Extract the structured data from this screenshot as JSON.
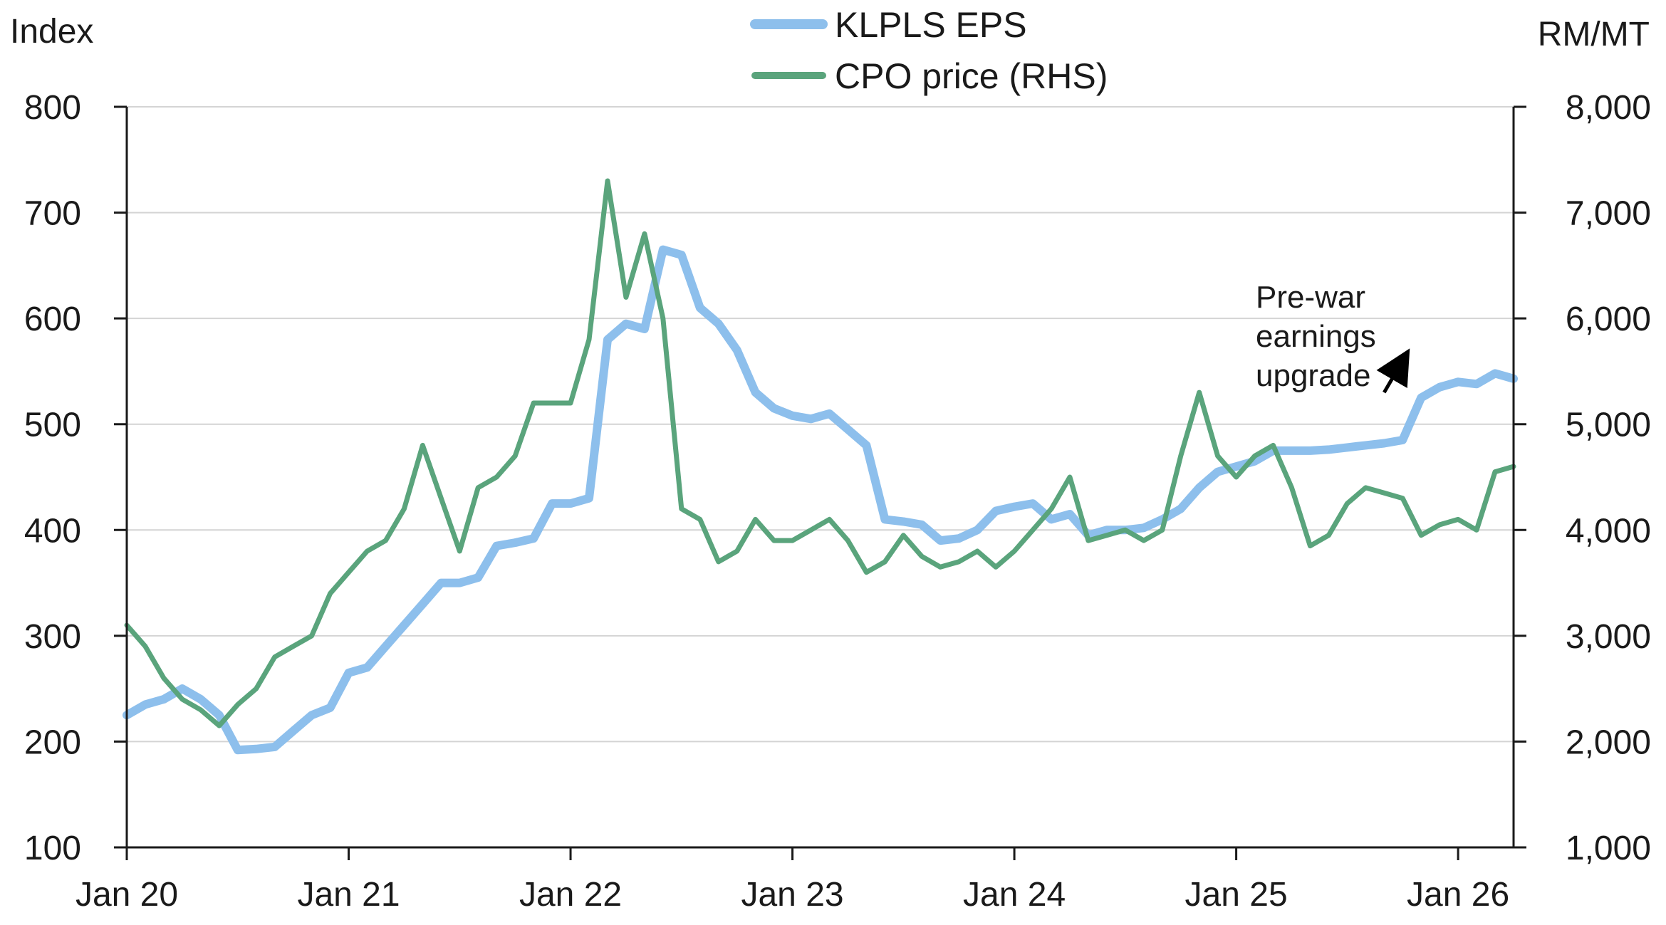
{
  "chart_data": {
    "type": "line",
    "legend": {
      "position": "top-center"
    },
    "grid": true,
    "left_axis": {
      "unit_label": "Index",
      "range": [
        100,
        800
      ],
      "ticks": [
        100,
        200,
        300,
        400,
        500,
        600,
        700,
        800
      ],
      "tick_labels": [
        "100",
        "200",
        "300",
        "400",
        "500",
        "600",
        "700",
        "800"
      ]
    },
    "right_axis": {
      "unit_label": "RM/MT",
      "range": [
        1000,
        8000
      ],
      "ticks": [
        1000,
        2000,
        3000,
        4000,
        5000,
        6000,
        7000,
        8000
      ],
      "tick_labels": [
        "1,000",
        "2,000",
        "3,000",
        "4,000",
        "5,000",
        "6,000",
        "7,000",
        "8,000"
      ]
    },
    "x_axis": {
      "range": [
        "2020-01",
        "2026-04"
      ],
      "ticks": [
        "2020-01",
        "2021-01",
        "2022-01",
        "2023-01",
        "2024-01",
        "2025-01",
        "2026-01"
      ],
      "tick_labels": [
        "Jan 20",
        "Jan 21",
        "Jan 22",
        "Jan 23",
        "Jan 24",
        "Jan 25",
        "Jan 26"
      ]
    },
    "series": [
      {
        "name": "KLPLS EPS",
        "axis": "left",
        "color": "#8dbfec",
        "points": [
          [
            "2020-01",
            225
          ],
          [
            "2020-02",
            235
          ],
          [
            "2020-03",
            240
          ],
          [
            "2020-04",
            250
          ],
          [
            "2020-05",
            240
          ],
          [
            "2020-06",
            225
          ],
          [
            "2020-07",
            192
          ],
          [
            "2020-08",
            193
          ],
          [
            "2020-09",
            195
          ],
          [
            "2020-10",
            210
          ],
          [
            "2020-11",
            225
          ],
          [
            "2020-12",
            232
          ],
          [
            "2021-01",
            265
          ],
          [
            "2021-02",
            270
          ],
          [
            "2021-03",
            290
          ],
          [
            "2021-04",
            310
          ],
          [
            "2021-05",
            330
          ],
          [
            "2021-06",
            350
          ],
          [
            "2021-07",
            350
          ],
          [
            "2021-08",
            355
          ],
          [
            "2021-09",
            385
          ],
          [
            "2021-10",
            388
          ],
          [
            "2021-11",
            392
          ],
          [
            "2021-12",
            425
          ],
          [
            "2022-01",
            425
          ],
          [
            "2022-02",
            430
          ],
          [
            "2022-03",
            580
          ],
          [
            "2022-04",
            595
          ],
          [
            "2022-05",
            590
          ],
          [
            "2022-06",
            665
          ],
          [
            "2022-07",
            660
          ],
          [
            "2022-08",
            610
          ],
          [
            "2022-09",
            595
          ],
          [
            "2022-10",
            570
          ],
          [
            "2022-11",
            530
          ],
          [
            "2022-12",
            515
          ],
          [
            "2023-01",
            508
          ],
          [
            "2023-02",
            505
          ],
          [
            "2023-03",
            510
          ],
          [
            "2023-04",
            495
          ],
          [
            "2023-05",
            480
          ],
          [
            "2023-06",
            410
          ],
          [
            "2023-07",
            408
          ],
          [
            "2023-08",
            405
          ],
          [
            "2023-09",
            390
          ],
          [
            "2023-10",
            392
          ],
          [
            "2023-11",
            400
          ],
          [
            "2023-12",
            418
          ],
          [
            "2024-01",
            422
          ],
          [
            "2024-02",
            425
          ],
          [
            "2024-03",
            410
          ],
          [
            "2024-04",
            415
          ],
          [
            "2024-05",
            395
          ],
          [
            "2024-06",
            400
          ],
          [
            "2024-07",
            400
          ],
          [
            "2024-08",
            402
          ],
          [
            "2024-09",
            410
          ],
          [
            "2024-10",
            420
          ],
          [
            "2024-11",
            440
          ],
          [
            "2024-12",
            455
          ],
          [
            "2025-01",
            460
          ],
          [
            "2025-02",
            465
          ],
          [
            "2025-03",
            475
          ],
          [
            "2025-04",
            475
          ],
          [
            "2025-05",
            475
          ],
          [
            "2025-06",
            476
          ],
          [
            "2025-07",
            478
          ],
          [
            "2025-08",
            480
          ],
          [
            "2025-09",
            482
          ],
          [
            "2025-10",
            485
          ],
          [
            "2025-11",
            525
          ],
          [
            "2025-12",
            535
          ],
          [
            "2026-01",
            540
          ],
          [
            "2026-02",
            538
          ],
          [
            "2026-03",
            548
          ],
          [
            "2026-04",
            543
          ]
        ]
      },
      {
        "name": "CPO price (RHS)",
        "axis": "right",
        "color": "#5aa47c",
        "points": [
          [
            "2020-01",
            3100
          ],
          [
            "2020-02",
            2900
          ],
          [
            "2020-03",
            2600
          ],
          [
            "2020-04",
            2400
          ],
          [
            "2020-05",
            2300
          ],
          [
            "2020-06",
            2150
          ],
          [
            "2020-07",
            2350
          ],
          [
            "2020-08",
            2500
          ],
          [
            "2020-09",
            2800
          ],
          [
            "2020-10",
            2900
          ],
          [
            "2020-11",
            3000
          ],
          [
            "2020-12",
            3400
          ],
          [
            "2021-01",
            3600
          ],
          [
            "2021-02",
            3800
          ],
          [
            "2021-03",
            3900
          ],
          [
            "2021-04",
            4200
          ],
          [
            "2021-05",
            4800
          ],
          [
            "2021-06",
            4300
          ],
          [
            "2021-07",
            3800
          ],
          [
            "2021-08",
            4400
          ],
          [
            "2021-09",
            4500
          ],
          [
            "2021-10",
            4700
          ],
          [
            "2021-11",
            5200
          ],
          [
            "2021-12",
            5200
          ],
          [
            "2022-01",
            5200
          ],
          [
            "2022-02",
            5800
          ],
          [
            "2022-03",
            7300
          ],
          [
            "2022-04",
            6200
          ],
          [
            "2022-05",
            6800
          ],
          [
            "2022-06",
            6000
          ],
          [
            "2022-07",
            4200
          ],
          [
            "2022-08",
            4100
          ],
          [
            "2022-09",
            3700
          ],
          [
            "2022-10",
            3800
          ],
          [
            "2022-11",
            4100
          ],
          [
            "2022-12",
            3900
          ],
          [
            "2023-01",
            3900
          ],
          [
            "2023-02",
            4000
          ],
          [
            "2023-03",
            4100
          ],
          [
            "2023-04",
            3900
          ],
          [
            "2023-05",
            3600
          ],
          [
            "2023-06",
            3700
          ],
          [
            "2023-07",
            3950
          ],
          [
            "2023-08",
            3750
          ],
          [
            "2023-09",
            3650
          ],
          [
            "2023-10",
            3700
          ],
          [
            "2023-11",
            3800
          ],
          [
            "2023-12",
            3650
          ],
          [
            "2024-01",
            3800
          ],
          [
            "2024-02",
            4000
          ],
          [
            "2024-03",
            4200
          ],
          [
            "2024-04",
            4500
          ],
          [
            "2024-05",
            3900
          ],
          [
            "2024-06",
            3950
          ],
          [
            "2024-07",
            4000
          ],
          [
            "2024-08",
            3900
          ],
          [
            "2024-09",
            4000
          ],
          [
            "2024-10",
            4700
          ],
          [
            "2024-11",
            5300
          ],
          [
            "2024-12",
            4700
          ],
          [
            "2025-01",
            4500
          ],
          [
            "2025-02",
            4700
          ],
          [
            "2025-03",
            4800
          ],
          [
            "2025-04",
            4400
          ],
          [
            "2025-05",
            3850
          ],
          [
            "2025-06",
            3950
          ],
          [
            "2025-07",
            4250
          ],
          [
            "2025-08",
            4400
          ],
          [
            "2025-09",
            4350
          ],
          [
            "2025-10",
            4300
          ],
          [
            "2025-11",
            3950
          ],
          [
            "2025-12",
            4050
          ],
          [
            "2026-01",
            4100
          ],
          [
            "2026-02",
            4000
          ],
          [
            "2026-03",
            4550
          ],
          [
            "2026-04",
            4600
          ]
        ]
      }
    ],
    "annotations": [
      {
        "lines": [
          "Pre-war",
          "earnings",
          "upgrade"
        ],
        "arrow": {
          "from": [
            "2025-09",
            530
          ],
          "to": [
            "2025-10",
            560
          ]
        }
      }
    ]
  }
}
